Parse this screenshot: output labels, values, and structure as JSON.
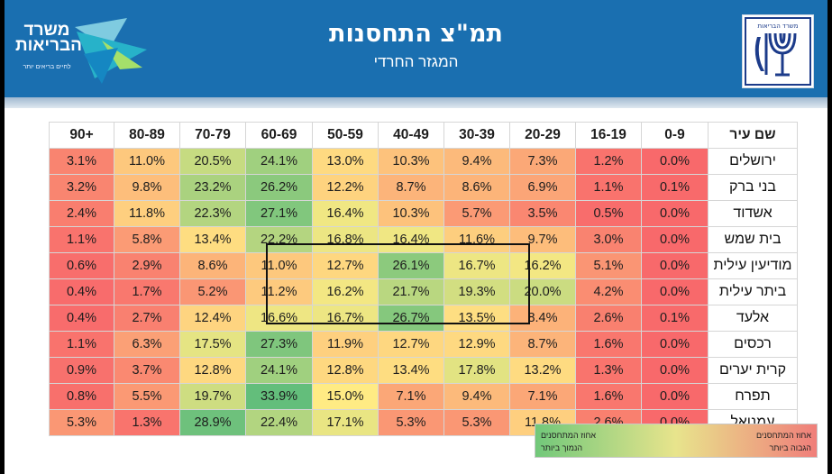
{
  "header": {
    "title": "תמ\"צ התחסנות",
    "subtitle": "המגזר החרדי",
    "logo_left_line1": "משרד",
    "logo_left_line2": "הבריאות",
    "logo_left_tagline": "לחיים בריאים יותר",
    "logo_right_text": "משרד הבריאות",
    "header_color": "#1a6fb0"
  },
  "legend": {
    "right_line1": "אחוז המתחסנים",
    "right_line2": "הגבוה ביותר",
    "left_line1": "אחוז המתחסנים",
    "left_line2": "הנמוך ביותר",
    "high_color": "#63be7b",
    "mid_color": "#ffeb84",
    "low_color": "#f8696b"
  },
  "chart_data": {
    "type": "heatmap",
    "row_header": "שם עיר",
    "columns": [
      "90+",
      "80-89",
      "70-79",
      "60-69",
      "50-59",
      "40-49",
      "30-39",
      "20-29",
      "16-19",
      "0-9"
    ],
    "rows": [
      {
        "city": "ירושלים",
        "values": [
          3.1,
          11.0,
          20.5,
          24.1,
          13.0,
          10.3,
          9.4,
          7.3,
          1.2,
          0.0
        ]
      },
      {
        "city": "בני ברק",
        "values": [
          3.2,
          9.8,
          23.2,
          26.2,
          12.2,
          8.7,
          8.6,
          6.9,
          1.1,
          0.1
        ]
      },
      {
        "city": "אשדוד",
        "values": [
          2.4,
          11.8,
          22.3,
          27.1,
          16.4,
          10.3,
          5.7,
          3.5,
          0.5,
          0.0
        ]
      },
      {
        "city": "בית שמש",
        "values": [
          1.1,
          5.8,
          13.4,
          22.2,
          16.8,
          16.4,
          11.6,
          9.7,
          3.0,
          0.0
        ]
      },
      {
        "city": "מודיעין עילית",
        "values": [
          0.6,
          2.9,
          8.6,
          11.0,
          12.7,
          26.1,
          16.7,
          16.2,
          5.1,
          0.0
        ]
      },
      {
        "city": "ביתר עילית",
        "values": [
          0.4,
          1.7,
          5.2,
          11.2,
          16.2,
          21.7,
          19.3,
          20.0,
          4.2,
          0.0
        ]
      },
      {
        "city": "אלעד",
        "values": [
          0.4,
          2.7,
          12.4,
          16.6,
          16.7,
          26.7,
          13.5,
          8.4,
          2.6,
          0.1
        ]
      },
      {
        "city": "רכסים",
        "values": [
          1.1,
          6.3,
          17.5,
          27.3,
          11.9,
          12.7,
          12.9,
          8.7,
          1.6,
          0.0
        ]
      },
      {
        "city": "קרית יערים",
        "values": [
          0.9,
          3.7,
          12.8,
          24.1,
          12.8,
          13.4,
          17.8,
          13.2,
          1.3,
          0.0
        ]
      },
      {
        "city": "תפרח",
        "values": [
          0.8,
          5.5,
          19.7,
          33.9,
          15.0,
          7.1,
          9.4,
          7.1,
          1.6,
          0.0
        ]
      },
      {
        "city": "עמנואל",
        "values": [
          5.3,
          1.3,
          28.9,
          22.4,
          17.1,
          5.3,
          5.3,
          11.8,
          2.6,
          0.0
        ]
      }
    ],
    "value_suffix": "%",
    "highlight": {
      "rows": [
        "מודיעין עילית",
        "ביתר עילית",
        "אלעד"
      ],
      "columns": [
        "50-59",
        "40-49",
        "30-39",
        "20-29"
      ]
    },
    "color_scale": {
      "low": 0,
      "mid": 15,
      "high": 30
    }
  }
}
